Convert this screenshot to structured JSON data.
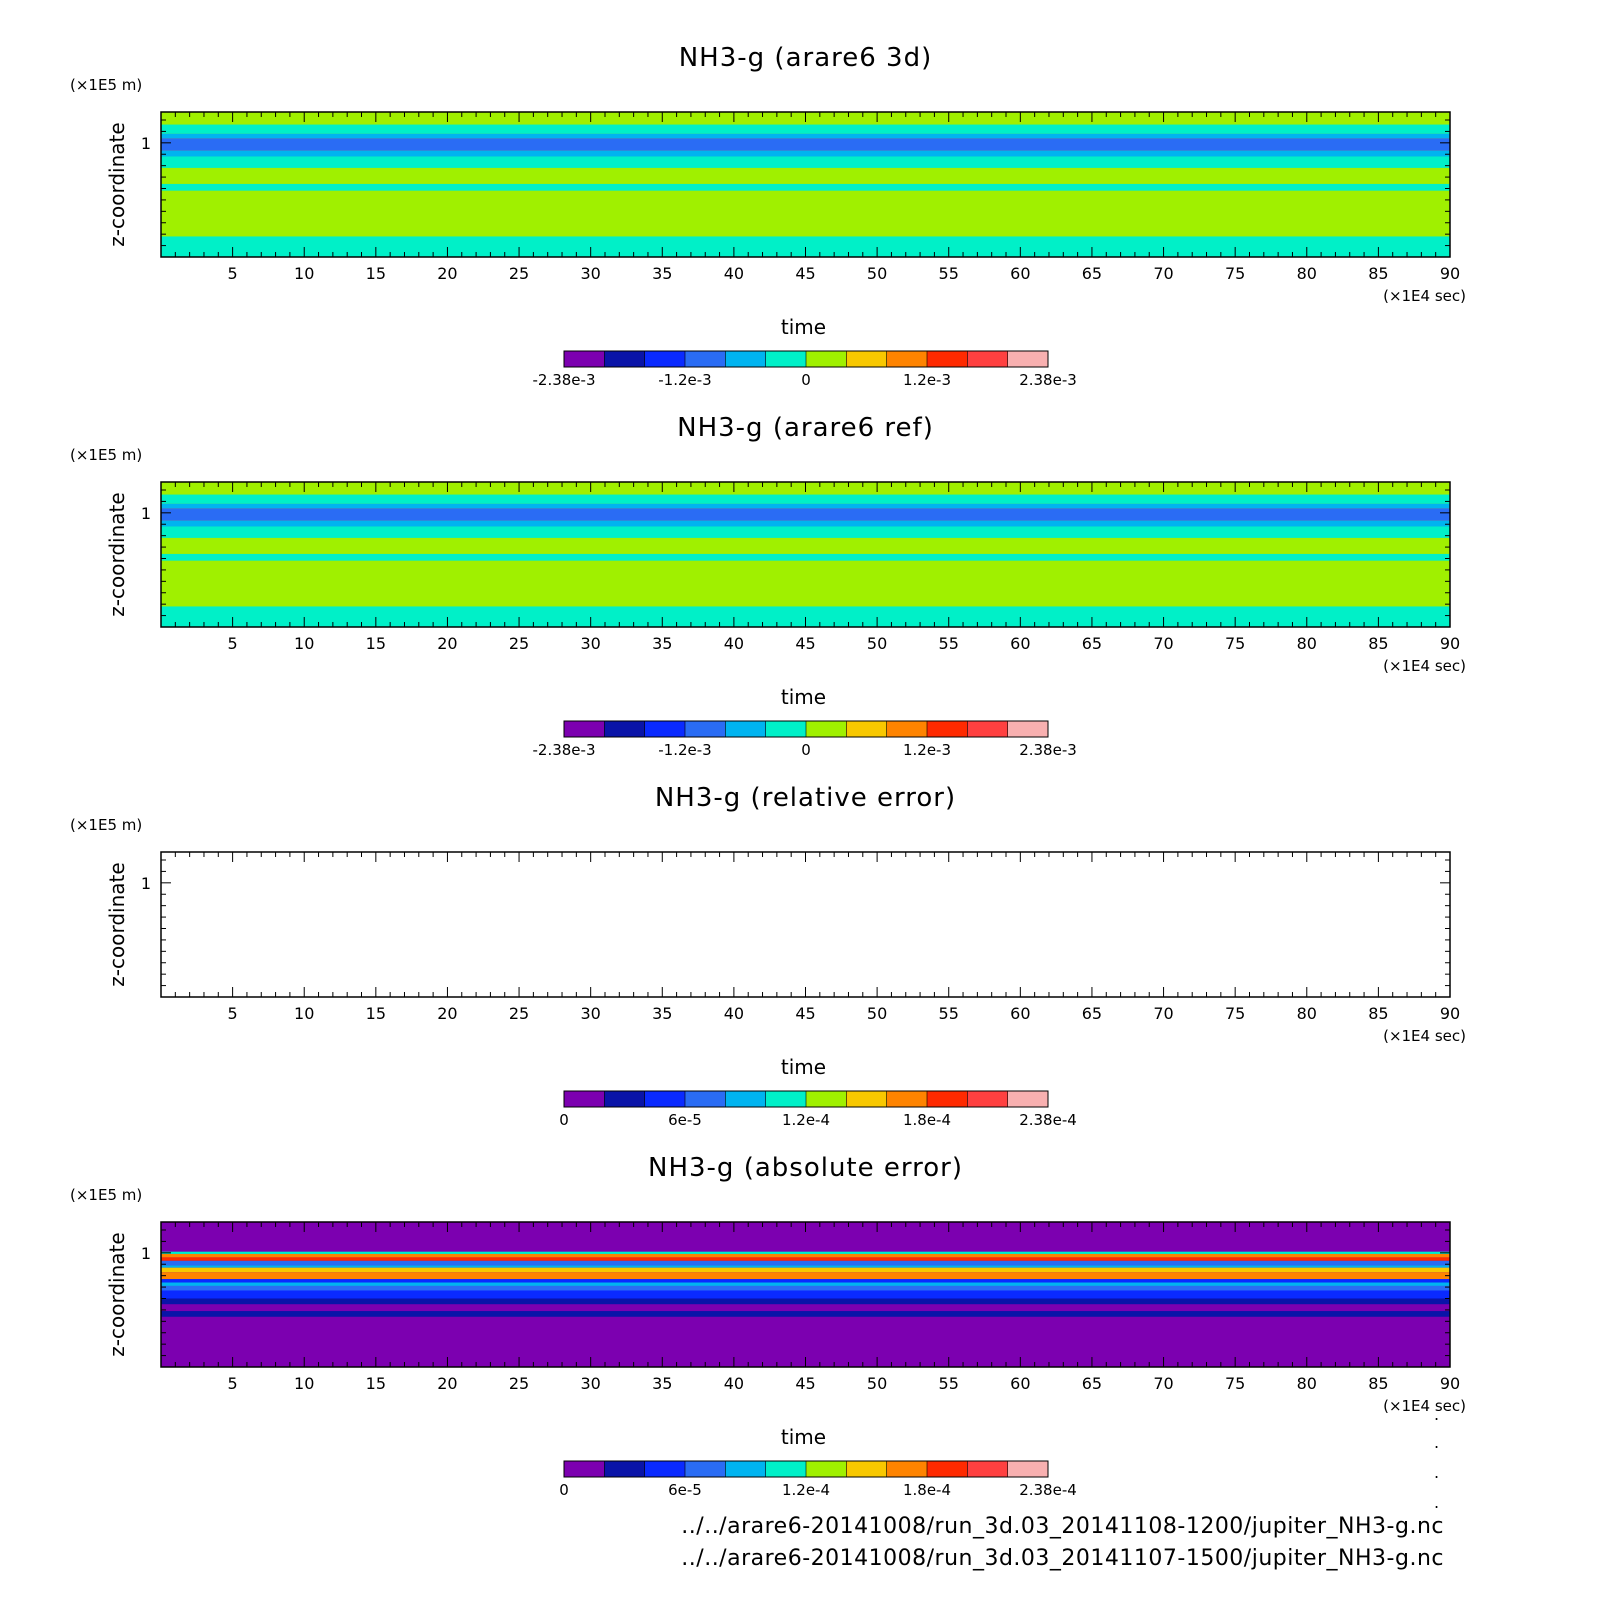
{
  "chart_data": [
    {
      "type": "heatmap",
      "title": "NH3-g (arare6 3d)",
      "xlabel": "time",
      "ylabel": "z-coordinate",
      "x_unit": "(×1E4 sec)",
      "y_unit": "(×1E5 m)",
      "xlim": [
        0,
        90
      ],
      "x_ticks": [
        "5",
        "10",
        "15",
        "20",
        "25",
        "30",
        "35",
        "40",
        "45",
        "50",
        "55",
        "60",
        "65",
        "70",
        "75",
        "80",
        "85",
        "90"
      ],
      "y_ticks": [
        "1"
      ],
      "colorbar": {
        "range": [
          -0.00238,
          0.00238
        ],
        "labels": [
          "-2.38e-3",
          "-1.2e-3",
          "0",
          "1.2e-3",
          "2.38e-3"
        ],
        "colors": [
          "#7c00b0",
          "#0a14a8",
          "#0a2aff",
          "#2a6cf4",
          "#00b4f0",
          "#00f0c8",
          "#a0f000",
          "#f8c800",
          "#ff8400",
          "#ff2a00",
          "#ff4040",
          "#f8b0b0"
        ]
      },
      "background_color": "#a0f000",
      "bands": [
        {
          "z_from": 1.16,
          "z_to": 1.27,
          "color": "#a0f000"
        },
        {
          "z_from": 1.08,
          "z_to": 1.16,
          "color": "#00f0c8"
        },
        {
          "z_from": 1.04,
          "z_to": 1.08,
          "color": "#00b4f0"
        },
        {
          "z_from": 0.93,
          "z_to": 1.04,
          "color": "#2a6cf4"
        },
        {
          "z_from": 0.88,
          "z_to": 0.93,
          "color": "#00b4f0"
        },
        {
          "z_from": 0.78,
          "z_to": 0.88,
          "color": "#00f0c8"
        },
        {
          "z_from": 0.64,
          "z_to": 0.78,
          "color": "#a0f000"
        },
        {
          "z_from": 0.58,
          "z_to": 0.64,
          "color": "#00f0c8"
        },
        {
          "z_from": 0.18,
          "z_to": 0.58,
          "color": "#a0f000"
        },
        {
          "z_from": 0.0,
          "z_to": 0.18,
          "color": "#00f0c8"
        }
      ]
    },
    {
      "type": "heatmap",
      "title": "NH3-g (arare6 ref)",
      "xlabel": "time",
      "ylabel": "z-coordinate",
      "x_unit": "(×1E4 sec)",
      "y_unit": "(×1E5 m)",
      "xlim": [
        0,
        90
      ],
      "x_ticks": [
        "5",
        "10",
        "15",
        "20",
        "25",
        "30",
        "35",
        "40",
        "45",
        "50",
        "55",
        "60",
        "65",
        "70",
        "75",
        "80",
        "85",
        "90"
      ],
      "y_ticks": [
        "1"
      ],
      "colorbar": {
        "range": [
          -0.00238,
          0.00238
        ],
        "labels": [
          "-2.38e-3",
          "-1.2e-3",
          "0",
          "1.2e-3",
          "2.38e-3"
        ],
        "colors": [
          "#7c00b0",
          "#0a14a8",
          "#0a2aff",
          "#2a6cf4",
          "#00b4f0",
          "#00f0c8",
          "#a0f000",
          "#f8c800",
          "#ff8400",
          "#ff2a00",
          "#ff4040",
          "#f8b0b0"
        ]
      },
      "background_color": "#a0f000",
      "bands": [
        {
          "z_from": 1.16,
          "z_to": 1.27,
          "color": "#a0f000"
        },
        {
          "z_from": 1.08,
          "z_to": 1.16,
          "color": "#00f0c8"
        },
        {
          "z_from": 1.04,
          "z_to": 1.08,
          "color": "#00b4f0"
        },
        {
          "z_from": 0.93,
          "z_to": 1.04,
          "color": "#2a6cf4"
        },
        {
          "z_from": 0.88,
          "z_to": 0.93,
          "color": "#00b4f0"
        },
        {
          "z_from": 0.78,
          "z_to": 0.88,
          "color": "#00f0c8"
        },
        {
          "z_from": 0.64,
          "z_to": 0.78,
          "color": "#a0f000"
        },
        {
          "z_from": 0.58,
          "z_to": 0.64,
          "color": "#00f0c8"
        },
        {
          "z_from": 0.18,
          "z_to": 0.58,
          "color": "#a0f000"
        },
        {
          "z_from": 0.0,
          "z_to": 0.18,
          "color": "#00f0c8"
        }
      ]
    },
    {
      "type": "heatmap",
      "title": "NH3-g (relative error)",
      "xlabel": "time",
      "ylabel": "z-coordinate",
      "x_unit": "(×1E4 sec)",
      "y_unit": "(×1E5 m)",
      "xlim": [
        0,
        90
      ],
      "x_ticks": [
        "5",
        "10",
        "15",
        "20",
        "25",
        "30",
        "35",
        "40",
        "45",
        "50",
        "55",
        "60",
        "65",
        "70",
        "75",
        "80",
        "85",
        "90"
      ],
      "y_ticks": [
        "1"
      ],
      "colorbar": {
        "range": [
          0,
          0.000238
        ],
        "labels": [
          "0",
          "6e-5",
          "1.2e-4",
          "1.8e-4",
          "2.38e-4"
        ],
        "colors": [
          "#7c00b0",
          "#0a14a8",
          "#0a2aff",
          "#2a6cf4",
          "#00b4f0",
          "#00f0c8",
          "#a0f000",
          "#f8c800",
          "#ff8400",
          "#ff2a00",
          "#ff4040",
          "#f8b0b0"
        ]
      },
      "background_color": "#ffffff",
      "bands": []
    },
    {
      "type": "heatmap",
      "title": "NH3-g (absolute error)",
      "xlabel": "time",
      "ylabel": "z-coordinate",
      "x_unit": "(×1E4 sec)",
      "y_unit": "(×1E5 m)",
      "xlim": [
        0,
        90
      ],
      "x_ticks": [
        "5",
        "10",
        "15",
        "20",
        "25",
        "30",
        "35",
        "40",
        "45",
        "50",
        "55",
        "60",
        "65",
        "70",
        "75",
        "80",
        "85",
        "90"
      ],
      "y_ticks": [
        "1"
      ],
      "colorbar": {
        "range": [
          0,
          0.000238
        ],
        "labels": [
          "0",
          "6e-5",
          "1.2e-4",
          "1.8e-4",
          "2.38e-4"
        ],
        "colors": [
          "#7c00b0",
          "#0a14a8",
          "#0a2aff",
          "#2a6cf4",
          "#00b4f0",
          "#00f0c8",
          "#a0f000",
          "#f8c800",
          "#ff8400",
          "#ff2a00",
          "#ff4040",
          "#f8b0b0"
        ]
      },
      "background_color": "#7c00b0",
      "bands": [
        {
          "z_from": 0.99,
          "z_to": 1.01,
          "color": "#00f0c8"
        },
        {
          "z_from": 0.96,
          "z_to": 0.99,
          "color": "#ff8400"
        },
        {
          "z_from": 0.93,
          "z_to": 0.96,
          "color": "#ff2a00"
        },
        {
          "z_from": 0.89,
          "z_to": 0.93,
          "color": "#2a6cf4"
        },
        {
          "z_from": 0.87,
          "z_to": 0.89,
          "color": "#00b4f0"
        },
        {
          "z_from": 0.83,
          "z_to": 0.87,
          "color": "#f8c800"
        },
        {
          "z_from": 0.77,
          "z_to": 0.83,
          "color": "#ff8400"
        },
        {
          "z_from": 0.74,
          "z_to": 0.77,
          "color": "#0a2aff"
        },
        {
          "z_from": 0.71,
          "z_to": 0.74,
          "color": "#00b4f0"
        },
        {
          "z_from": 0.67,
          "z_to": 0.71,
          "color": "#2a6cf4"
        },
        {
          "z_from": 0.6,
          "z_to": 0.67,
          "color": "#0a2aff"
        },
        {
          "z_from": 0.55,
          "z_to": 0.6,
          "color": "#0a14a8"
        },
        {
          "z_from": 0.44,
          "z_to": 0.49,
          "color": "#0a14a8"
        }
      ]
    }
  ],
  "footer": {
    "dots": [
      ".",
      ".",
      ".",
      "."
    ],
    "lines": [
      "../../arare6-20141008/run_3d.03_20141108-1200/jupiter_NH3-g.nc",
      "../../arare6-20141008/run_3d.03_20141107-1500/jupiter_NH3-g.nc"
    ]
  }
}
